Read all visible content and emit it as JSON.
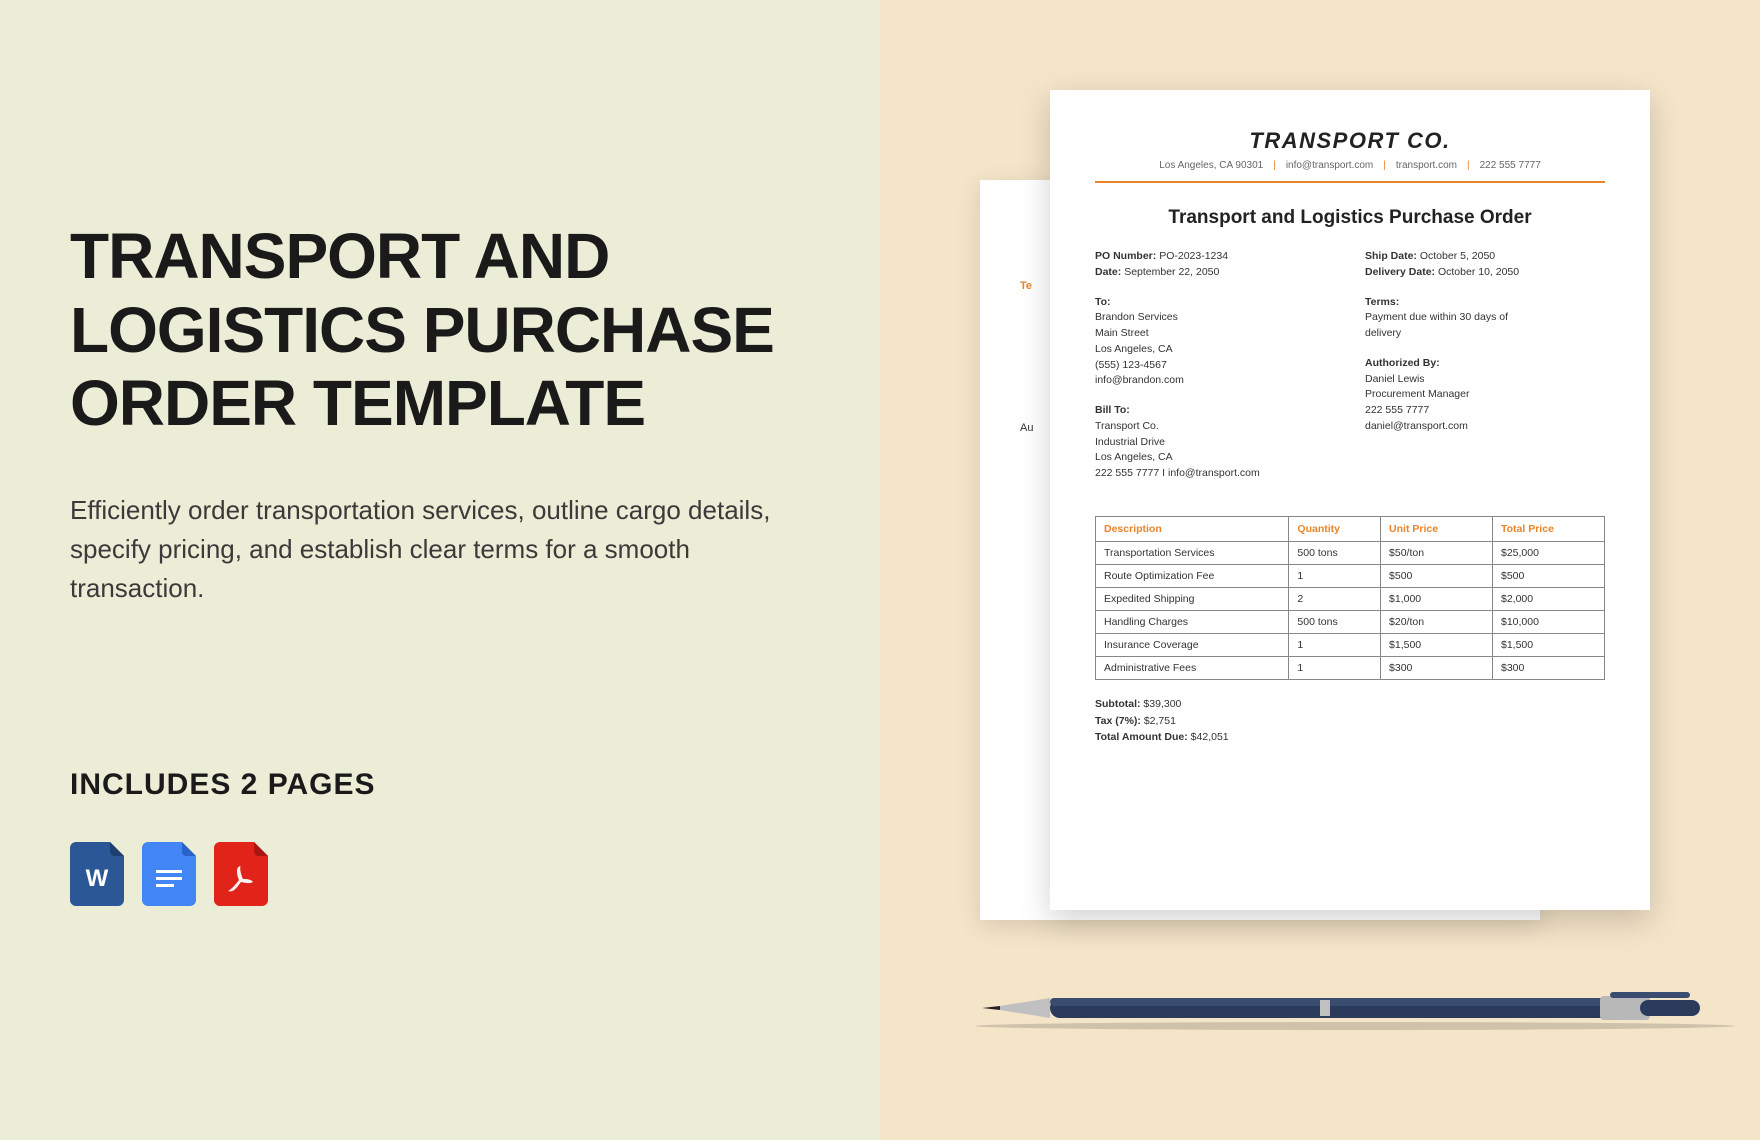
{
  "left": {
    "title": "TRANSPORT AND LOGISTICS PURCHASE ORDER TEMPLATE",
    "description": "Efficiently order transportation services, outline cargo details, specify pricing, and establish clear terms for a smooth transaction.",
    "includes": "INCLUDES 2 PAGES",
    "icons": [
      {
        "name": "word-icon",
        "bg": "#2b5797",
        "letter": "W"
      },
      {
        "name": "docs-icon",
        "bg": "#4285f4",
        "letter": ""
      },
      {
        "name": "pdf-icon",
        "bg": "#e2231a",
        "letter": ""
      }
    ]
  },
  "colors": {
    "left_bg": "#ecedd6",
    "right_bg": "#f4e4c8",
    "accent": "#e8852a",
    "text_dark": "#1a1a1a"
  },
  "doc_back": {
    "label1": "Te",
    "label2": "Au"
  },
  "doc": {
    "company": "TRANSPORT CO.",
    "header_items": [
      "Los Angeles, CA 90301",
      "info@transport.com",
      "transport.com",
      "222 555 7777"
    ],
    "title": "Transport and Logistics Purchase Order",
    "left_col": {
      "po_number_label": "PO Number:",
      "po_number": "PO-2023-1234",
      "date_label": "Date:",
      "date": "September 22, 2050",
      "to_label": "To:",
      "to_lines": [
        "Brandon Services",
        "Main Street",
        "Los Angeles, CA",
        "(555) 123-4567",
        "info@brandon.com"
      ],
      "bill_to_label": "Bill To:",
      "bill_to_lines": [
        "Transport Co.",
        "Industrial Drive",
        "Los Angeles, CA",
        "222 555 7777 I info@transport.com"
      ]
    },
    "right_col": {
      "ship_date_label": "Ship Date:",
      "ship_date": "October 5, 2050",
      "delivery_date_label": "Delivery Date:",
      "delivery_date": "October 10, 2050",
      "terms_label": "Terms:",
      "terms_lines": [
        "Payment due within 30 days of",
        "delivery"
      ],
      "authorized_label": "Authorized By:",
      "authorized_lines": [
        "Daniel Lewis",
        "Procurement Manager",
        "222 555 7777",
        "daniel@transport.com"
      ]
    },
    "table": {
      "columns": [
        "Description",
        "Quantity",
        "Unit Price",
        "Total Price"
      ],
      "col_widths": [
        "38%",
        "18%",
        "22%",
        "22%"
      ],
      "rows": [
        [
          "Transportation Services",
          "500 tons",
          "$50/ton",
          "$25,000"
        ],
        [
          "Route Optimization Fee",
          "1",
          "$500",
          "$500"
        ],
        [
          "Expedited Shipping",
          "2",
          "$1,000",
          "$2,000"
        ],
        [
          "Handling Charges",
          "500 tons",
          "$20/ton",
          "$10,000"
        ],
        [
          "Insurance Coverage",
          "1",
          "$1,500",
          "$1,500"
        ],
        [
          "Administrative Fees",
          "1",
          "$300",
          "$300"
        ]
      ]
    },
    "totals": {
      "subtotal_label": "Subtotal:",
      "subtotal": "$39,300",
      "tax_label": "Tax (7%):",
      "tax": "$2,751",
      "total_label": "Total Amount Due:",
      "total": "$42,051"
    }
  }
}
